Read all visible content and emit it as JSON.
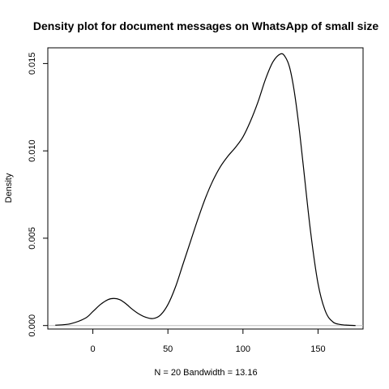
{
  "chart_data": {
    "type": "line",
    "title": "Density plot for document messages on WhatsApp of small size",
    "xlabel": "N = 20   Bandwidth = 13.16",
    "ylabel": "Density",
    "xlim": [
      -30,
      180
    ],
    "ylim": [
      -0.0002,
      0.0159
    ],
    "x_ticks": [
      0,
      50,
      100,
      150
    ],
    "x_tick_labels": [
      "0",
      "50",
      "100",
      "150"
    ],
    "y_ticks": [
      0.0,
      0.005,
      0.01,
      0.015
    ],
    "y_tick_labels": [
      "0.000",
      "0.005",
      "0.010",
      "0.015"
    ],
    "grid": false,
    "zero_line": true,
    "series": [
      {
        "x": [
          -25,
          -15,
          -5,
          0,
          5,
          10,
          14,
          18,
          22,
          26,
          30,
          35,
          40,
          45,
          50,
          55,
          60,
          65,
          70,
          75,
          80,
          85,
          90,
          95,
          100,
          105,
          110,
          115,
          120,
          125,
          128,
          131,
          134,
          137,
          140,
          145,
          150,
          155,
          160,
          165,
          170,
          175
        ],
        "y": [
          2e-05,
          0.0001,
          0.00042,
          0.0008,
          0.0012,
          0.00148,
          0.00155,
          0.00148,
          0.00125,
          0.00095,
          0.0007,
          0.00048,
          0.0004,
          0.0006,
          0.0012,
          0.0022,
          0.0035,
          0.0048,
          0.0061,
          0.0073,
          0.0083,
          0.0091,
          0.0097,
          0.0102,
          0.0108,
          0.0117,
          0.0128,
          0.0141,
          0.0151,
          0.01555,
          0.0154,
          0.0148,
          0.0135,
          0.0116,
          0.0093,
          0.0054,
          0.0024,
          0.0008,
          0.0002,
          6e-05,
          2e-05,
          0.0
        ]
      }
    ]
  }
}
